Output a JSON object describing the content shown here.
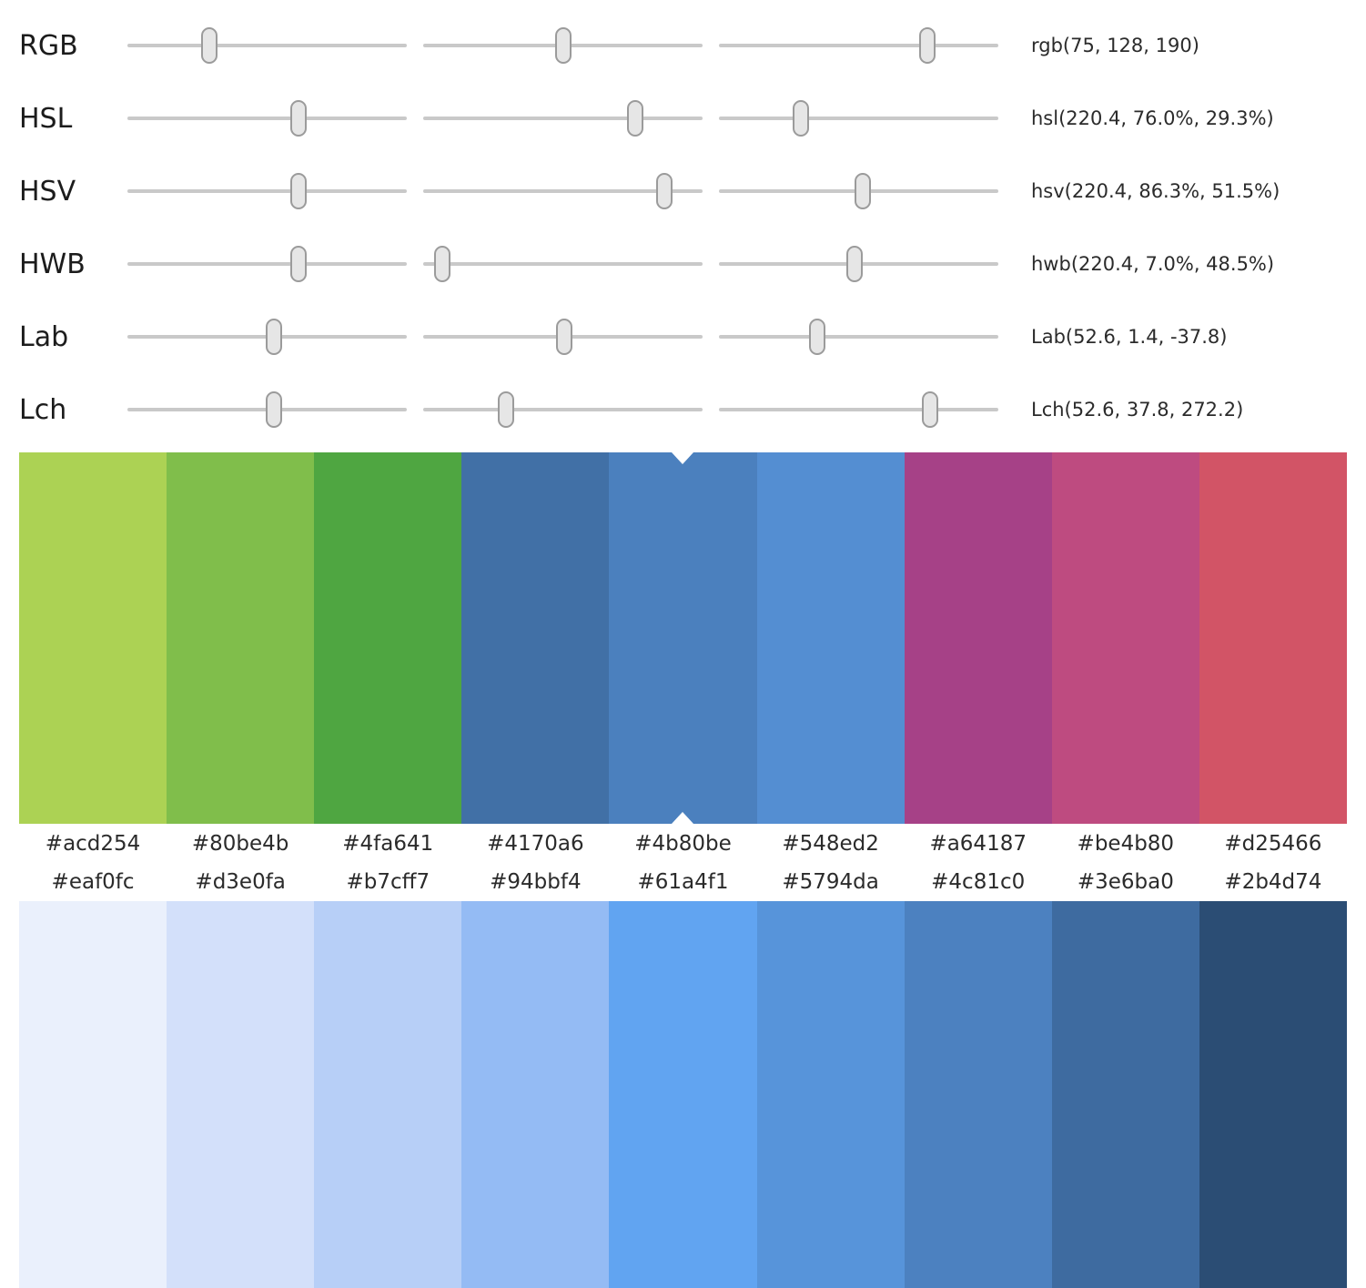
{
  "theme": {
    "background": "#ffffff",
    "text_primary": "#1c1c1c",
    "text_secondary": "#2b2b2b",
    "track_color": "#c9c9c9",
    "thumb_fill": "#e6e6e6",
    "thumb_border": "#9b9b9b",
    "selection_marker": "#ffffff"
  },
  "slider_panel": {
    "rows": [
      {
        "label": "RGB",
        "value": "rgb(75, 128, 190)",
        "thumb_positions_pct": [
          29.4,
          50.2,
          74.5
        ]
      },
      {
        "label": "HSL",
        "value": "hsl(220.4, 76.0%, 29.3%)",
        "thumb_positions_pct": [
          61.2,
          76.0,
          29.3
        ]
      },
      {
        "label": "HSV",
        "value": "hsv(220.4, 86.3%, 51.5%)",
        "thumb_positions_pct": [
          61.2,
          86.3,
          51.5
        ]
      },
      {
        "label": "HWB",
        "value": "hwb(220.4, 7.0%, 48.5%)",
        "thumb_positions_pct": [
          61.2,
          7.0,
          48.5
        ]
      },
      {
        "label": "Lab",
        "value": "Lab(52.6, 1.4, -37.8)",
        "thumb_positions_pct": [
          52.6,
          50.5,
          35.2
        ]
      },
      {
        "label": "Lch",
        "value": "Lch(52.6, 37.8, 272.2)",
        "thumb_positions_pct": [
          52.6,
          29.5,
          75.6
        ]
      }
    ]
  },
  "top_palette": {
    "selected_index": 4,
    "colors": [
      "#acd254",
      "#80be4b",
      "#4fa641",
      "#4170a6",
      "#4b80be",
      "#548ed2",
      "#a64187",
      "#be4b80",
      "#d25466"
    ],
    "labels": [
      "#acd254",
      "#80be4b",
      "#4fa641",
      "#4170a6",
      "#4b80be",
      "#548ed2",
      "#a64187",
      "#be4b80",
      "#d25466"
    ]
  },
  "bottom_palette": {
    "selected_index": -1,
    "colors": [
      "#eaf0fc",
      "#d3e0fa",
      "#b7cff7",
      "#94bbf4",
      "#61a4f1",
      "#5794da",
      "#4c81c0",
      "#3e6ba0",
      "#2b4d74"
    ],
    "labels": [
      "#eaf0fc",
      "#d3e0fa",
      "#b7cff7",
      "#94bbf4",
      "#61a4f1",
      "#5794da",
      "#4c81c0",
      "#3e6ba0",
      "#2b4d74"
    ]
  }
}
